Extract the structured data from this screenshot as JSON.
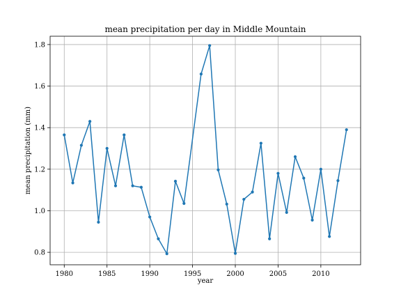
{
  "chart_data": {
    "type": "line",
    "title": "mean precipitation per day in Middle Mountain",
    "xlabel": "year",
    "ylabel": "mean precipitation (mm)",
    "xlim": [
      1978.35,
      2014.65
    ],
    "ylim": [
      0.74,
      1.84
    ],
    "xticks": [
      1980,
      1985,
      1990,
      1995,
      2000,
      2005,
      2010
    ],
    "xtick_labels": [
      "1980",
      "1985",
      "1990",
      "1995",
      "2000",
      "2005",
      "2010"
    ],
    "yticks": [
      0.8,
      1.0,
      1.2,
      1.4,
      1.6,
      1.8
    ],
    "ytick_labels": [
      "0.8",
      "1.0",
      "1.2",
      "1.4",
      "1.6",
      "1.8"
    ],
    "grid": true,
    "color": "#1f77b4",
    "x": [
      1980,
      1981,
      1982,
      1983,
      1984,
      1985,
      1986,
      1987,
      1988,
      1989,
      1990,
      1991,
      1992,
      1993,
      1994,
      1995,
      1996,
      1997,
      1998,
      1999,
      2000,
      2001,
      2002,
      2003,
      2004,
      2005,
      2006,
      2007,
      2008,
      2009,
      2010,
      2011,
      2012,
      2013
    ],
    "y": [
      1.365,
      1.134,
      1.315,
      1.43,
      0.945,
      1.3,
      1.12,
      1.365,
      1.12,
      1.113,
      0.97,
      0.865,
      0.793,
      1.142,
      1.035,
      null,
      1.658,
      1.795,
      1.197,
      1.032,
      0.795,
      1.055,
      1.09,
      1.325,
      0.865,
      1.18,
      0.992,
      1.26,
      1.157,
      0.955,
      1.2,
      0.876,
      1.145,
      1.39
    ]
  }
}
